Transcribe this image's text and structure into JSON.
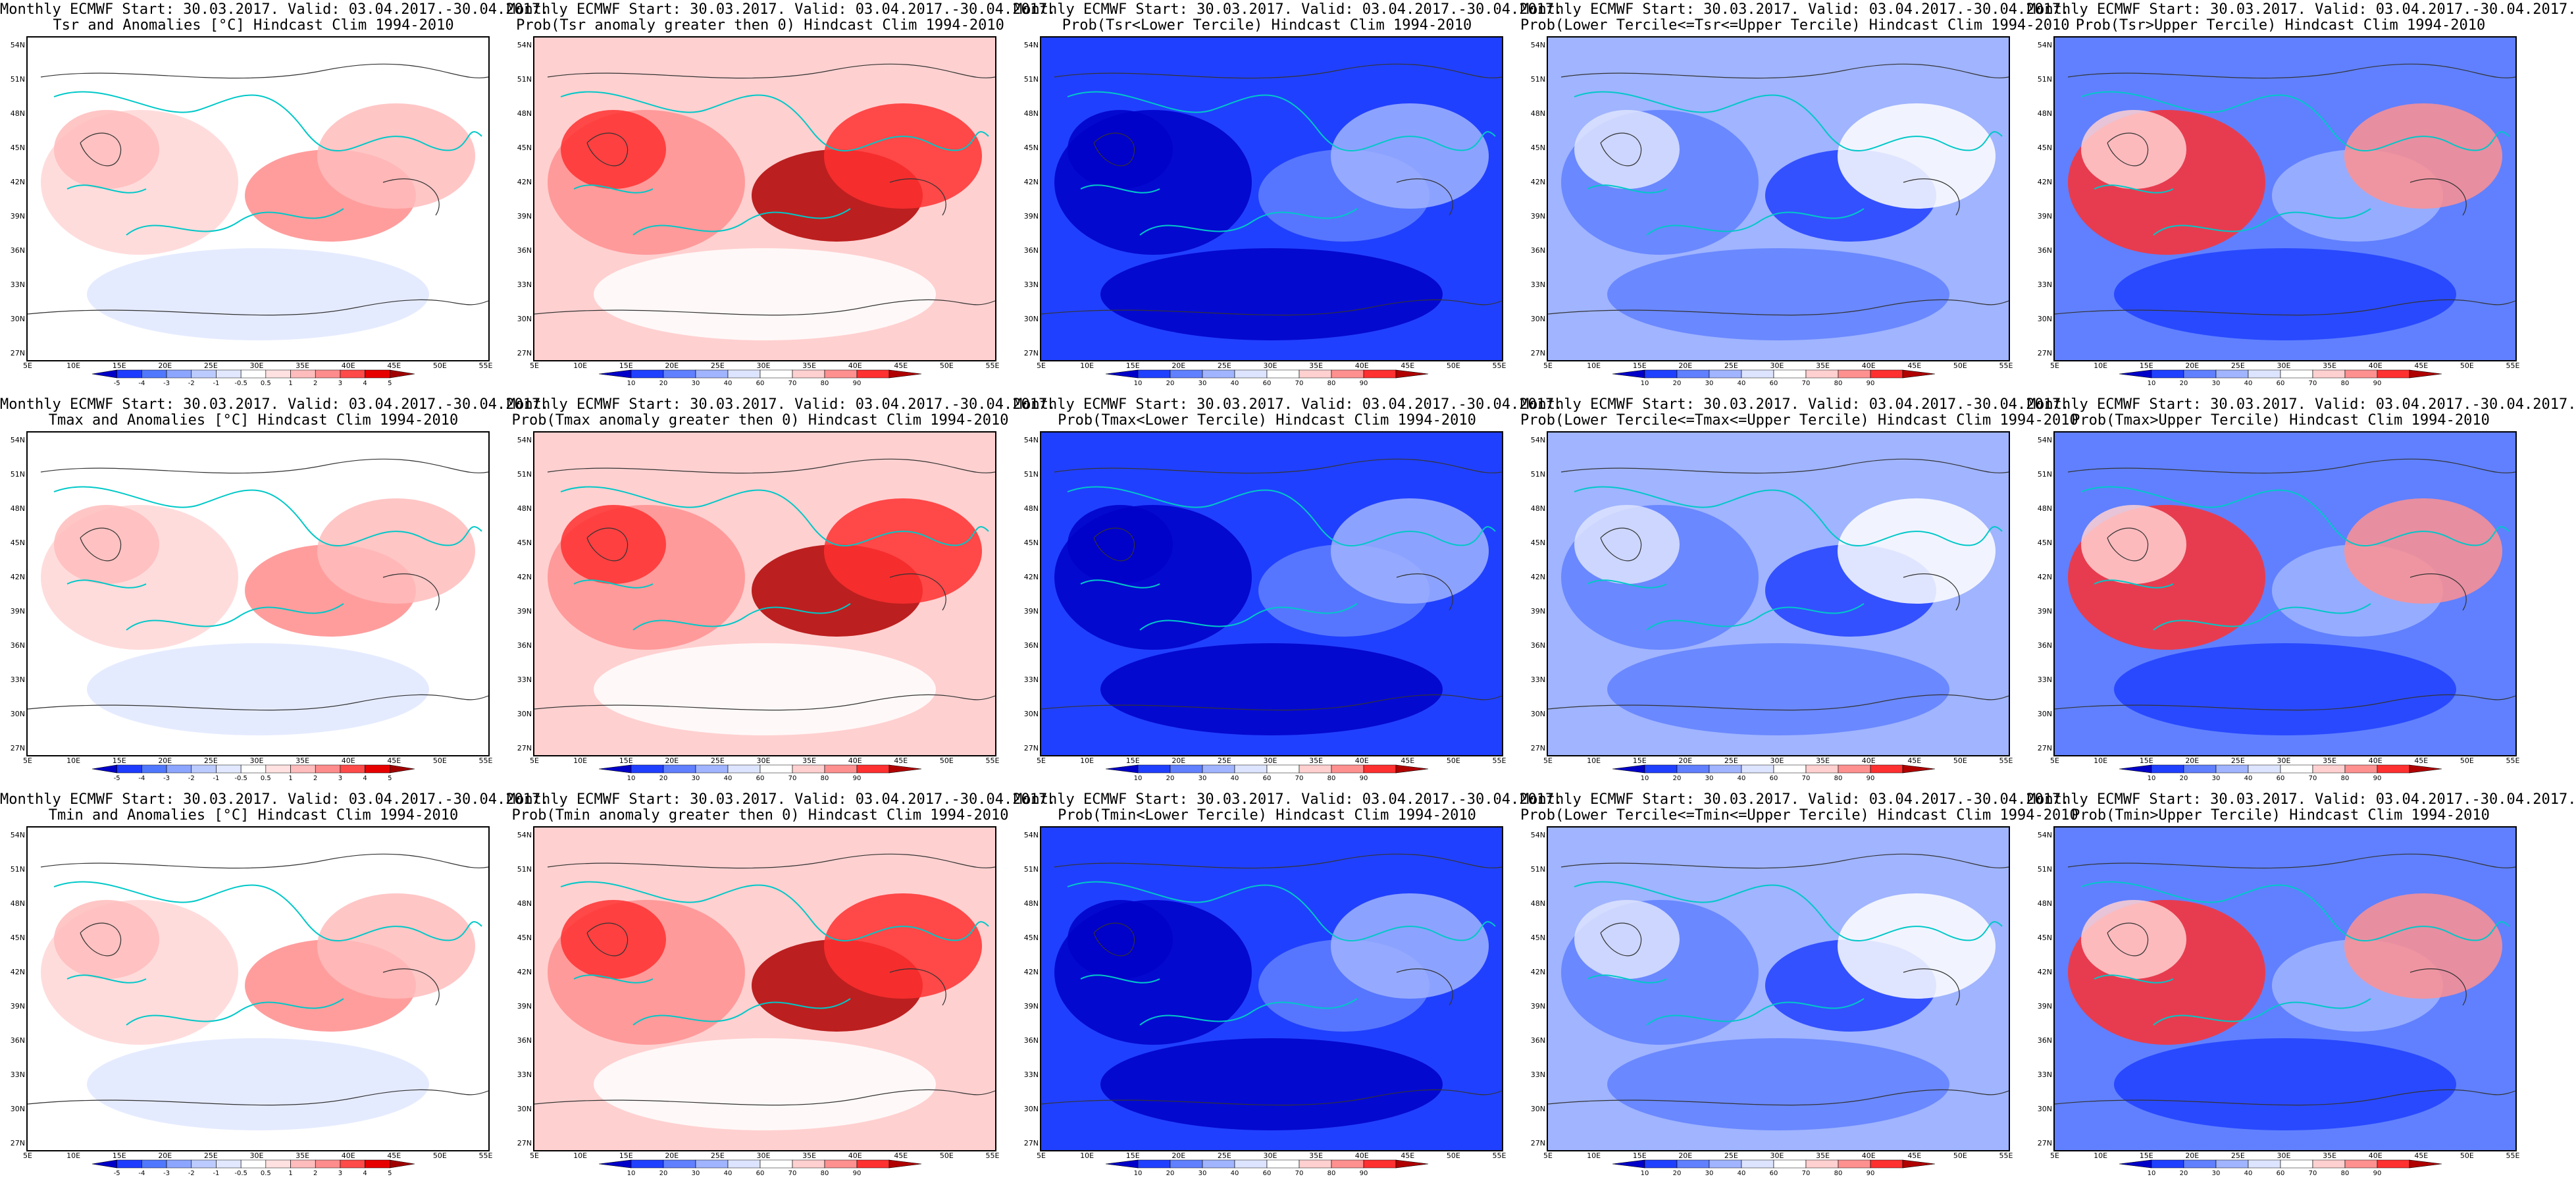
{
  "lat_labels": [
    "54N",
    "51N",
    "48N",
    "45N",
    "42N",
    "39N",
    "36N",
    "33N",
    "30N",
    "27N"
  ],
  "lon_labels": [
    "5E",
    "10E",
    "15E",
    "20E",
    "25E",
    "30E",
    "35E",
    "40E",
    "45E",
    "50E",
    "55E"
  ],
  "scales": {
    "anom": {
      "labels": [
        "-5",
        "-4",
        "-3",
        "-2",
        "-1",
        "-0.5",
        "0.5",
        "1",
        "2",
        "3",
        "4",
        "5"
      ],
      "colors": [
        "#0000c8",
        "#1e3cff",
        "#5078ff",
        "#8ca5ff",
        "#bccbff",
        "#e1e8ff",
        "#ffffff",
        "#ffe1e1",
        "#ffbcbc",
        "#ff8c8c",
        "#ff4a4a",
        "#e60000",
        "#a00000"
      ]
    },
    "prob": {
      "labels": [
        "10",
        "20",
        "30",
        "40",
        "60",
        "70",
        "80",
        "90"
      ],
      "colors": [
        "#0000c8",
        "#2040ff",
        "#6080ff",
        "#a0b4ff",
        "#dde4ff",
        "#ffffff",
        "#ffd0d0",
        "#ff9090",
        "#ff3030",
        "#b00000"
      ]
    }
  },
  "panels": [
    {
      "line1": "Monthly ECMWF Start: 30.03.2017. Valid: 03.04.2017.-30.04.2017.",
      "line2": "Tsr and Anomalies [°C] Hindcast Clim 1994-2010",
      "scale": "anom",
      "theme": "anom"
    },
    {
      "line1": "Monthly ECMWF Start: 30.03.2017. Valid: 03.04.2017.-30.04.2017.",
      "line2": "Prob(Tsr anomaly greater then 0) Hindcast Clim 1994-2010",
      "scale": "prob",
      "theme": "red"
    },
    {
      "line1": "Monthly ECMWF Start: 30.03.2017. Valid: 03.04.2017.-30.04.2017.",
      "line2": "Prob(Tsr<Lower Tercile) Hindcast Clim 1994-2010",
      "scale": "prob",
      "theme": "blue"
    },
    {
      "line1": "Monthly ECMWF Start: 30.03.2017. Valid: 03.04.2017.-30.04.2017.",
      "line2": "Prob(Lower Tercile<=Tsr<=Upper Tercile) Hindcast Clim 1994-2010",
      "scale": "prob",
      "theme": "lightblue"
    },
    {
      "line1": "Monthly ECMWF Start: 30.03.2017. Valid: 03.04.2017.-30.04.2017.",
      "line2": "Prob(Tsr>Upper Tercile) Hindcast Clim 1994-2010",
      "scale": "prob",
      "theme": "mixed"
    },
    {
      "line1": "Monthly ECMWF Start: 30.03.2017. Valid: 03.04.2017.-30.04.2017.",
      "line2": "Tmax and Anomalies [°C] Hindcast Clim 1994-2010",
      "scale": "anom",
      "theme": "anom"
    },
    {
      "line1": "Monthly ECMWF Start: 30.03.2017. Valid: 03.04.2017.-30.04.2017.",
      "line2": "Prob(Tmax anomaly greater then 0) Hindcast Clim 1994-2010",
      "scale": "prob",
      "theme": "red"
    },
    {
      "line1": "Monthly ECMWF Start: 30.03.2017. Valid: 03.04.2017.-30.04.2017.",
      "line2": "Prob(Tmax<Lower Tercile) Hindcast Clim 1994-2010",
      "scale": "prob",
      "theme": "blue"
    },
    {
      "line1": "Monthly ECMWF Start: 30.03.2017. Valid: 03.04.2017.-30.04.2017.",
      "line2": "Prob(Lower Tercile<=Tmax<=Upper Tercile) Hindcast Clim 1994-2010",
      "scale": "prob",
      "theme": "lightblue"
    },
    {
      "line1": "Monthly ECMWF Start: 30.03.2017. Valid: 03.04.2017.-30.04.2017.",
      "line2": "Prob(Tmax>Upper Tercile) Hindcast Clim 1994-2010",
      "scale": "prob",
      "theme": "mixed"
    },
    {
      "line1": "Monthly ECMWF Start: 30.03.2017. Valid: 03.04.2017.-30.04.2017.",
      "line2": "Tmin and Anomalies [°C] Hindcast Clim 1994-2010",
      "scale": "anom",
      "theme": "anom"
    },
    {
      "line1": "Monthly ECMWF Start: 30.03.2017. Valid: 03.04.2017.-30.04.2017.",
      "line2": "Prob(Tmin anomaly greater then 0) Hindcast Clim 1994-2010",
      "scale": "prob",
      "theme": "red"
    },
    {
      "line1": "Monthly ECMWF Start: 30.03.2017. Valid: 03.04.2017.-30.04.2017.",
      "line2": "Prob(Tmin<Lower Tercile) Hindcast Clim 1994-2010",
      "scale": "prob",
      "theme": "blue"
    },
    {
      "line1": "Monthly ECMWF Start: 30.03.2017. Valid: 03.04.2017.-30.04.2017.",
      "line2": "Prob(Lower Tercile<=Tmin<=Upper Tercile) Hindcast Clim 1994-2010",
      "scale": "prob",
      "theme": "lightblue"
    },
    {
      "line1": "Monthly ECMWF Start: 30.03.2017. Valid: 03.04.2017.-30.04.2017.",
      "line2": "Prob(Tmin>Upper Tercile) Hindcast Clim 1994-2010",
      "scale": "prob",
      "theme": "mixed"
    }
  ]
}
